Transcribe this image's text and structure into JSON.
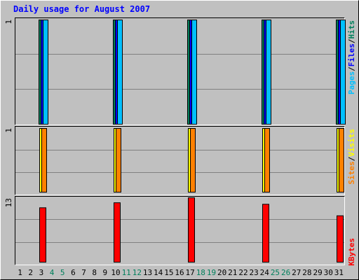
{
  "chart_data": [
    {
      "type": "bar",
      "title": "Daily usage for August 2007",
      "x": [
        "1",
        "2",
        "3",
        "4",
        "5",
        "6",
        "7",
        "8",
        "9",
        "10",
        "11",
        "12",
        "13",
        "14",
        "15",
        "16",
        "17",
        "18",
        "19",
        "20",
        "21",
        "22",
        "23",
        "24",
        "25",
        "26",
        "27",
        "28",
        "29",
        "30",
        "31"
      ],
      "weekend_days": [
        "4",
        "5",
        "11",
        "12",
        "18",
        "19",
        "25",
        "26"
      ],
      "ylabel_parts": [
        "Pages",
        "/",
        "Files",
        "/",
        "Hits"
      ],
      "ymax_label": "1",
      "ylim": [
        0,
        1
      ],
      "series": [
        {
          "name": "Hits",
          "color": "#00805c",
          "values": [
            0,
            0,
            1,
            0,
            0,
            0,
            0,
            0,
            0,
            1,
            0,
            0,
            0,
            0,
            0,
            0,
            1,
            0,
            0,
            0,
            0,
            0,
            0,
            1,
            0,
            0,
            0,
            0,
            0,
            0,
            1
          ]
        },
        {
          "name": "Files",
          "color": "#0000ff",
          "values": [
            0,
            0,
            1,
            0,
            0,
            0,
            0,
            0,
            0,
            1,
            0,
            0,
            0,
            0,
            0,
            0,
            1,
            0,
            0,
            0,
            0,
            0,
            0,
            1,
            0,
            0,
            0,
            0,
            0,
            0,
            1
          ]
        },
        {
          "name": "Pages",
          "color": "#00c0ff",
          "values": [
            0,
            0,
            1,
            0,
            0,
            0,
            0,
            0,
            0,
            1,
            0,
            0,
            0,
            0,
            0,
            0,
            1,
            0,
            0,
            0,
            0,
            0,
            0,
            1,
            0,
            0,
            0,
            0,
            0,
            0,
            1
          ]
        }
      ]
    },
    {
      "type": "bar",
      "ylabel_parts": [
        "Sites",
        "/",
        "Visits"
      ],
      "ymax_label": "1",
      "ylim": [
        0,
        1
      ],
      "series": [
        {
          "name": "Visits",
          "color": "#ffff00",
          "values": [
            0,
            0,
            1,
            0,
            0,
            0,
            0,
            0,
            0,
            1,
            0,
            0,
            0,
            0,
            0,
            0,
            1,
            0,
            0,
            0,
            0,
            0,
            0,
            1,
            0,
            0,
            0,
            0,
            0,
            0,
            1
          ]
        },
        {
          "name": "Sites",
          "color": "#ff8000",
          "values": [
            0,
            0,
            1,
            0,
            0,
            0,
            0,
            0,
            0,
            1,
            0,
            0,
            0,
            0,
            0,
            0,
            1,
            0,
            0,
            0,
            0,
            0,
            0,
            1,
            0,
            0,
            0,
            0,
            0,
            0,
            1
          ]
        }
      ]
    },
    {
      "type": "bar",
      "ylabel_parts": [
        "KBytes"
      ],
      "ymax_label": "13",
      "ylim": [
        0,
        13
      ],
      "series": [
        {
          "name": "KBytes",
          "color": "#ff0000",
          "values": [
            0,
            0,
            11,
            0,
            0,
            0,
            0,
            0,
            0,
            12,
            0,
            0,
            0,
            0,
            0,
            0,
            13,
            0,
            0,
            0,
            0,
            0,
            0,
            11.7,
            0,
            0,
            0,
            0,
            0,
            0,
            9.4
          ]
        }
      ]
    }
  ],
  "colors": {
    "title": "#0000ff",
    "plot_background": "#c0c0c0",
    "grid": "#808080",
    "weekday_label": "#000000",
    "weekend_label": "#00805c",
    "slash": "#000000"
  }
}
